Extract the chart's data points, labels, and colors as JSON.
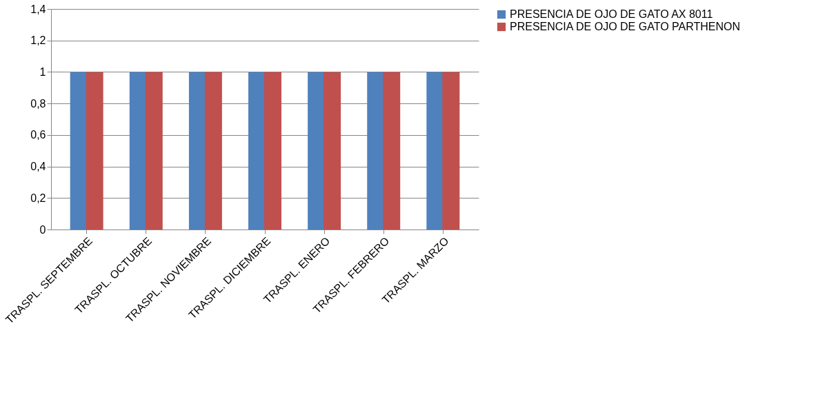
{
  "chart_data": {
    "type": "bar",
    "categories": [
      "TRASPL. SEPTEMBRE",
      "TRASPL. OCTUBRE",
      "TRASPL. NOVIEMBRE",
      "TRASPL. DICIEMBRE",
      "TRASPL. ENERO",
      "TRASPL. FEBRERO",
      "TRASPL. MARZO"
    ],
    "series": [
      {
        "name": "PRESENCIA DE OJO DE GATO AX 8011",
        "color": "#4f81bd",
        "values": [
          1,
          1,
          1,
          1,
          1,
          1,
          1
        ]
      },
      {
        "name": "PRESENCIA DE OJO DE GATO PARTHENON",
        "color": "#c0504d",
        "values": [
          1,
          1,
          1,
          1,
          1,
          1,
          1
        ]
      }
    ],
    "ylim": [
      0,
      1.4
    ],
    "yticks": [
      0,
      {
        "value": 0.2,
        "label": "0,2"
      },
      {
        "value": 0.4,
        "label": "0,4"
      },
      {
        "value": 0.6,
        "label": "0,6"
      },
      {
        "value": 0.8,
        "label": "0,8"
      },
      1,
      {
        "value": 1.2,
        "label": "1,2"
      },
      {
        "value": 1.4,
        "label": "1,4"
      }
    ],
    "grid": "y",
    "legend": "right"
  }
}
